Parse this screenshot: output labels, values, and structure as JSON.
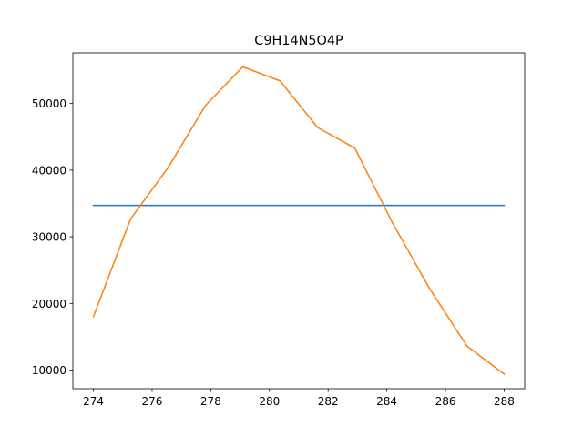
{
  "chart_data": {
    "type": "line",
    "title": "C9H14N5O4P",
    "xlabel": "",
    "ylabel": "",
    "xlim": [
      273.3,
      288.7
    ],
    "ylim": [
      7200,
      57600
    ],
    "xticks": [
      274,
      276,
      278,
      280,
      282,
      284,
      286,
      288
    ],
    "yticks": [
      10000,
      20000,
      30000,
      40000,
      50000
    ],
    "grid": false,
    "legend": "none",
    "series": [
      {
        "color": "#1f77b4",
        "x": [
          274,
          288
        ],
        "y": [
          34700,
          34700
        ]
      },
      {
        "color": "#ff7f0e",
        "x": [
          274,
          275.27,
          276.55,
          277.82,
          279.09,
          280.36,
          281.64,
          282.91,
          284.18,
          285.45,
          286.73,
          288
        ],
        "y": [
          18000,
          32700,
          40400,
          49700,
          55500,
          53400,
          46400,
          43300,
          32200,
          22300,
          13600,
          9400
        ]
      }
    ]
  }
}
